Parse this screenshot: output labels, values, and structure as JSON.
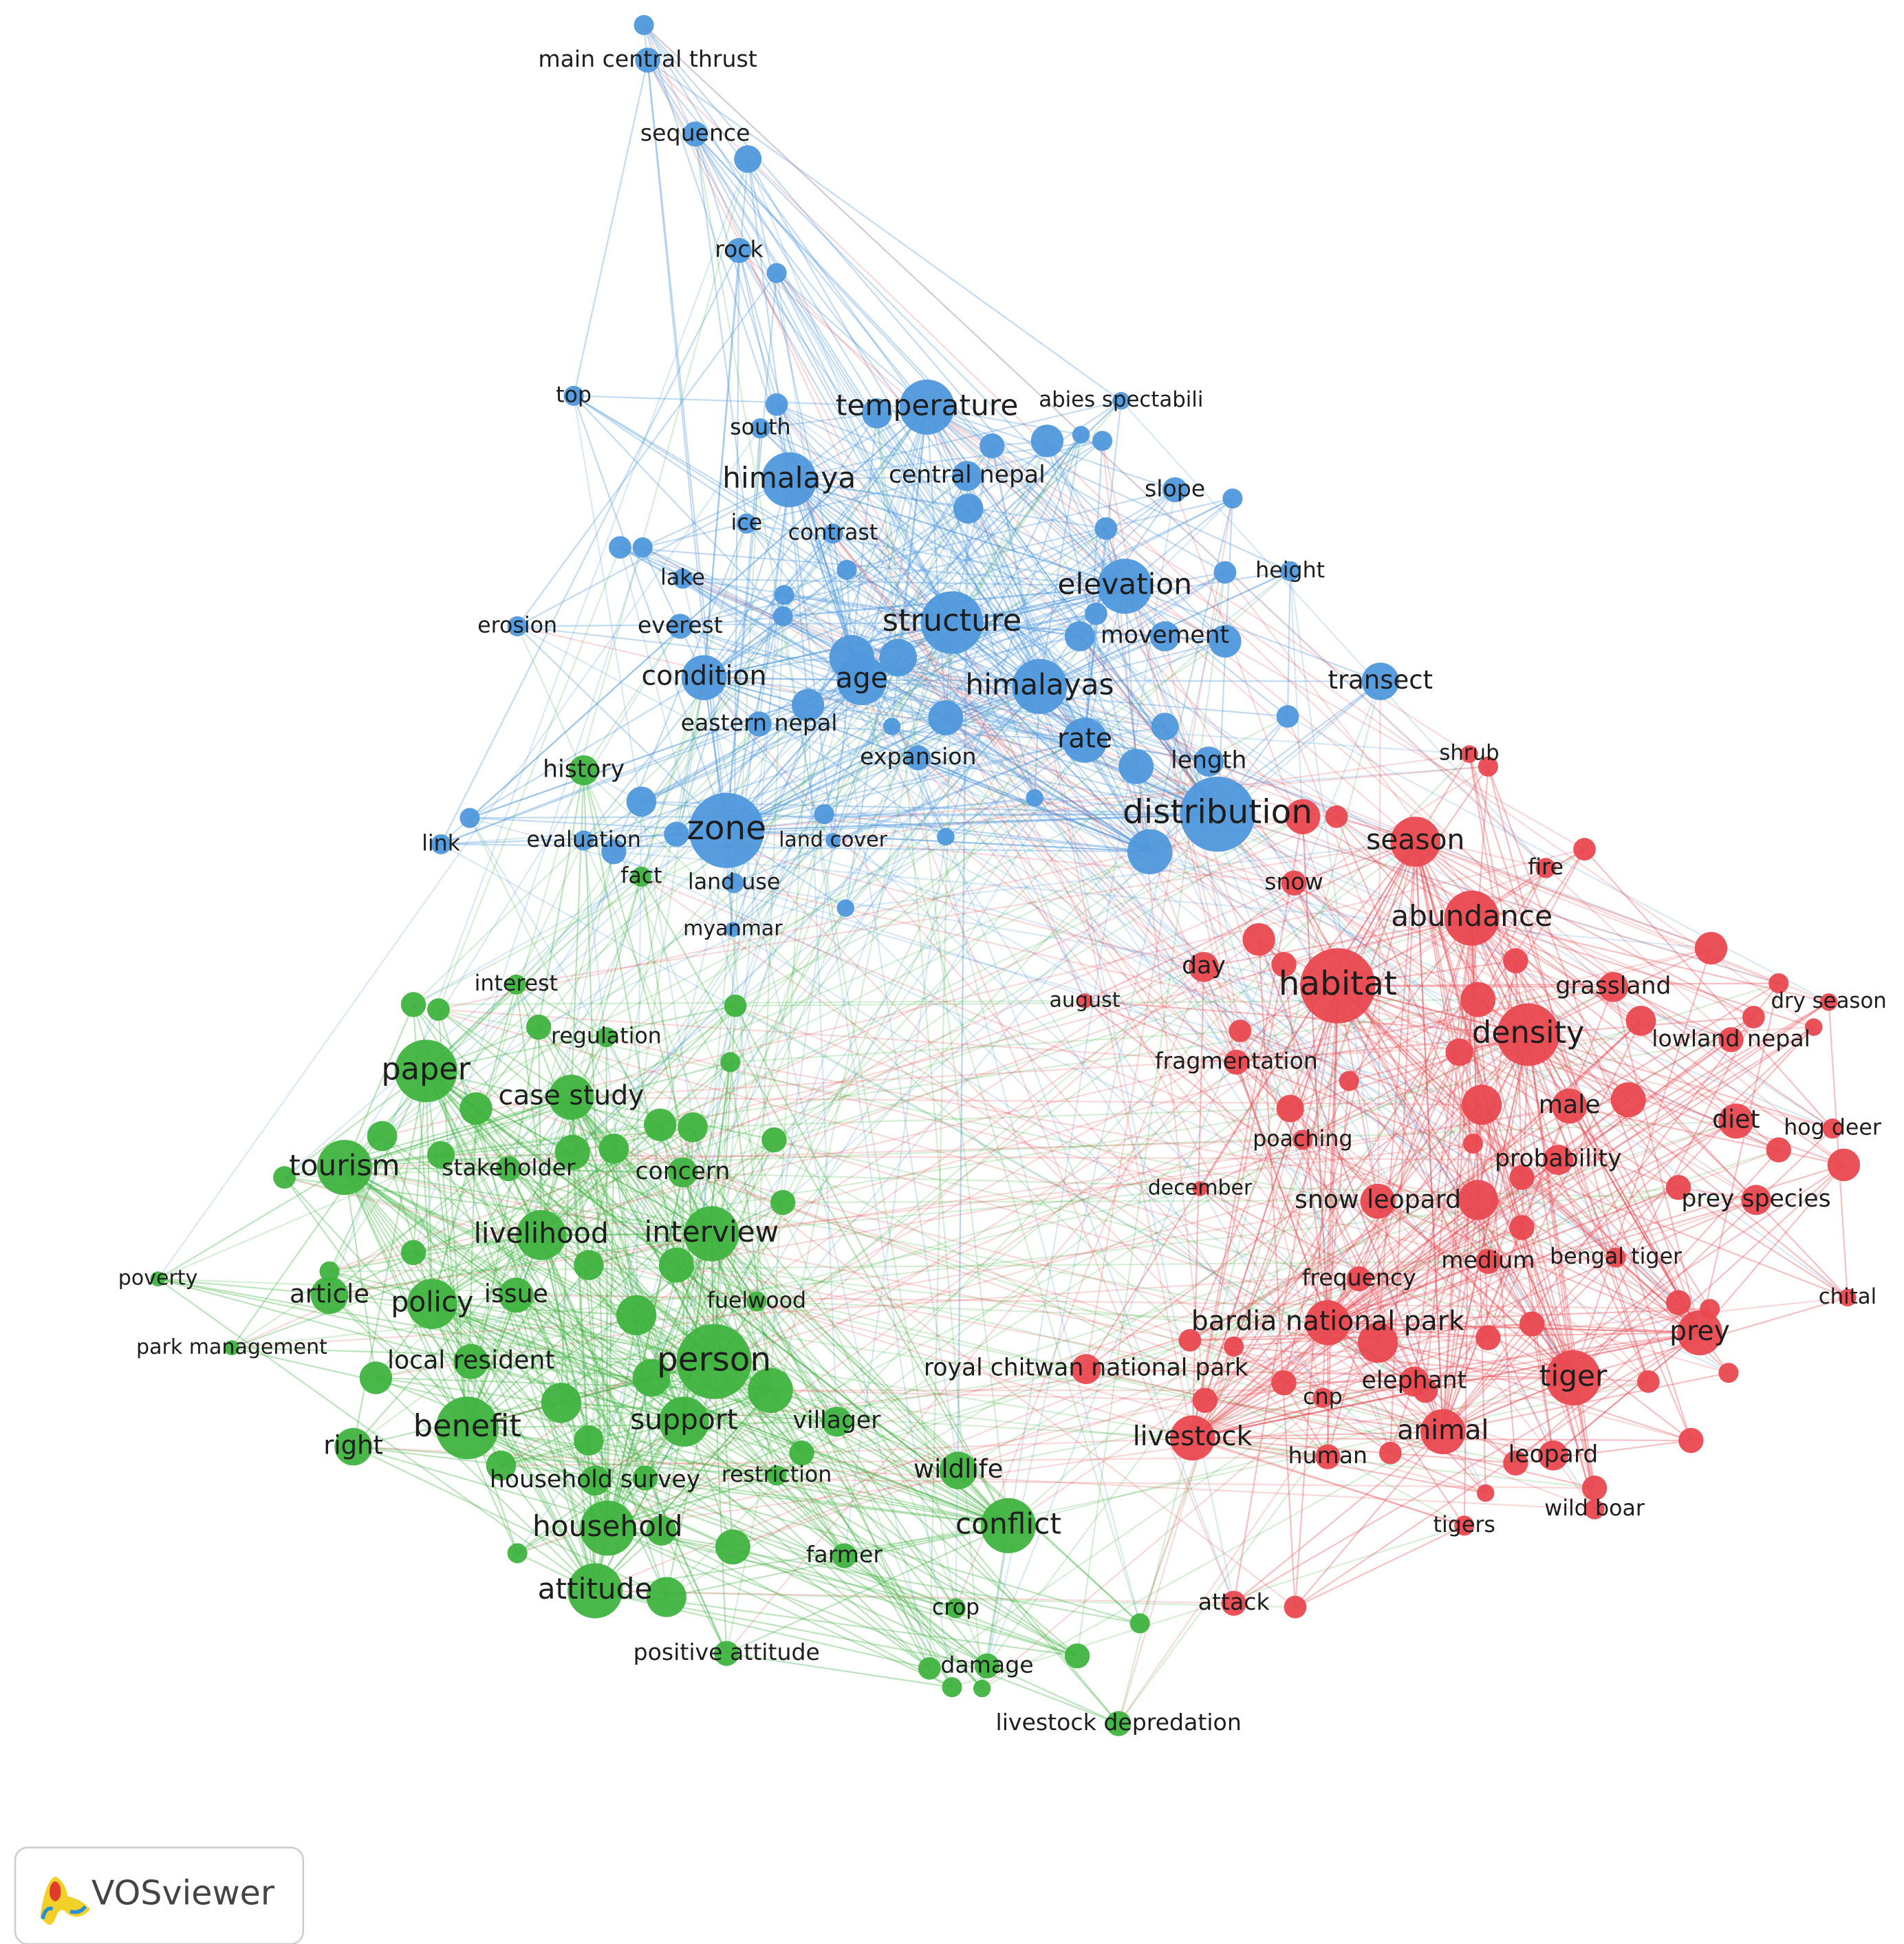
{
  "clusters": [
    {
      "color": "#4f98dc"
    },
    {
      "color": "#3fb33f"
    },
    {
      "color": "#e9484f"
    }
  ],
  "nodes": [
    {
      "label": "main central thrust",
      "cluster": 0
    },
    {
      "label": "sequence",
      "cluster": 0
    },
    {
      "label": "rock",
      "cluster": 0
    },
    {
      "label": "top",
      "cluster": 0
    },
    {
      "label": "temperature",
      "cluster": 0
    },
    {
      "label": "abies spectabili",
      "cluster": 0
    },
    {
      "label": "south",
      "cluster": 0
    },
    {
      "label": "himalaya",
      "cluster": 0
    },
    {
      "label": "central nepal",
      "cluster": 0
    },
    {
      "label": "slope",
      "cluster": 0
    },
    {
      "label": "ice",
      "cluster": 0
    },
    {
      "label": "contrast",
      "cluster": 0
    },
    {
      "label": "height",
      "cluster": 0
    },
    {
      "label": "lake",
      "cluster": 0
    },
    {
      "label": "elevation",
      "cluster": 0
    },
    {
      "label": "erosion",
      "cluster": 0
    },
    {
      "label": "everest",
      "cluster": 0
    },
    {
      "label": "structure",
      "cluster": 0
    },
    {
      "label": "movement",
      "cluster": 0
    },
    {
      "label": "condition",
      "cluster": 0
    },
    {
      "label": "age",
      "cluster": 0
    },
    {
      "label": "himalayas",
      "cluster": 0
    },
    {
      "label": "transect",
      "cluster": 0
    },
    {
      "label": "eastern nepal",
      "cluster": 0
    },
    {
      "label": "rate",
      "cluster": 0
    },
    {
      "label": "expansion",
      "cluster": 0
    },
    {
      "label": "length",
      "cluster": 0
    },
    {
      "label": "distribution",
      "cluster": 0
    },
    {
      "label": "zone",
      "cluster": 0
    },
    {
      "label": "land cover",
      "cluster": 0
    },
    {
      "label": "evaluation",
      "cluster": 0
    },
    {
      "label": "link",
      "cluster": 0
    },
    {
      "label": "land use",
      "cluster": 0
    },
    {
      "label": "myanmar",
      "cluster": 0
    },
    {
      "label": "history",
      "cluster": 1
    },
    {
      "label": "fact",
      "cluster": 1
    },
    {
      "label": "interest",
      "cluster": 1
    },
    {
      "label": "regulation",
      "cluster": 1
    },
    {
      "label": "paper",
      "cluster": 1
    },
    {
      "label": "case study",
      "cluster": 1
    },
    {
      "label": "tourism",
      "cluster": 1
    },
    {
      "label": "stakeholder",
      "cluster": 1
    },
    {
      "label": "concern",
      "cluster": 1
    },
    {
      "label": "livelihood",
      "cluster": 1
    },
    {
      "label": "interview",
      "cluster": 1
    },
    {
      "label": "poverty",
      "cluster": 1
    },
    {
      "label": "article",
      "cluster": 1
    },
    {
      "label": "policy",
      "cluster": 1
    },
    {
      "label": "issue",
      "cluster": 1
    },
    {
      "label": "fuelwood",
      "cluster": 1
    },
    {
      "label": "park management",
      "cluster": 1
    },
    {
      "label": "local resident",
      "cluster": 1
    },
    {
      "label": "person",
      "cluster": 1
    },
    {
      "label": "benefit",
      "cluster": 1
    },
    {
      "label": "support",
      "cluster": 1
    },
    {
      "label": "villager",
      "cluster": 1
    },
    {
      "label": "right",
      "cluster": 1
    },
    {
      "label": "household survey",
      "cluster": 1
    },
    {
      "label": "restriction",
      "cluster": 1
    },
    {
      "label": "wildlife",
      "cluster": 1
    },
    {
      "label": "conflict",
      "cluster": 1
    },
    {
      "label": "household",
      "cluster": 1
    },
    {
      "label": "farmer",
      "cluster": 1
    },
    {
      "label": "attitude",
      "cluster": 1
    },
    {
      "label": "crop",
      "cluster": 1
    },
    {
      "label": "positive attitude",
      "cluster": 1
    },
    {
      "label": "damage",
      "cluster": 1
    },
    {
      "label": "livestock depredation",
      "cluster": 1
    },
    {
      "label": "shrub",
      "cluster": 2
    },
    {
      "label": "season",
      "cluster": 2
    },
    {
      "label": "fire",
      "cluster": 2
    },
    {
      "label": "snow",
      "cluster": 2
    },
    {
      "label": "abundance",
      "cluster": 2
    },
    {
      "label": "day",
      "cluster": 2
    },
    {
      "label": "habitat",
      "cluster": 2
    },
    {
      "label": "grassland",
      "cluster": 2
    },
    {
      "label": "dry season",
      "cluster": 2
    },
    {
      "label": "august",
      "cluster": 2
    },
    {
      "label": "density",
      "cluster": 2
    },
    {
      "label": "lowland nepal",
      "cluster": 2
    },
    {
      "label": "fragmentation",
      "cluster": 2
    },
    {
      "label": "male",
      "cluster": 2
    },
    {
      "label": "diet",
      "cluster": 2
    },
    {
      "label": "hog deer",
      "cluster": 2
    },
    {
      "label": "poaching",
      "cluster": 2
    },
    {
      "label": "probability",
      "cluster": 2
    },
    {
      "label": "december",
      "cluster": 2
    },
    {
      "label": "snow leopard",
      "cluster": 2
    },
    {
      "label": "prey species",
      "cluster": 2
    },
    {
      "label": "medium",
      "cluster": 2
    },
    {
      "label": "bengal tiger",
      "cluster": 2
    },
    {
      "label": "frequency",
      "cluster": 2
    },
    {
      "label": "chital",
      "cluster": 2
    },
    {
      "label": "bardia national park",
      "cluster": 2
    },
    {
      "label": "prey",
      "cluster": 2
    },
    {
      "label": "royal chitwan national park",
      "cluster": 2
    },
    {
      "label": "cnp",
      "cluster": 2
    },
    {
      "label": "elephant",
      "cluster": 2
    },
    {
      "label": "tiger",
      "cluster": 2
    },
    {
      "label": "livestock",
      "cluster": 2
    },
    {
      "label": "human",
      "cluster": 2
    },
    {
      "label": "animal",
      "cluster": 2
    },
    {
      "label": "leopard",
      "cluster": 2
    },
    {
      "label": "tigers",
      "cluster": 2
    },
    {
      "label": "wild boar",
      "cluster": 2
    },
    {
      "label": "attack",
      "cluster": 2
    }
  ],
  "logo": "VOSviewer"
}
